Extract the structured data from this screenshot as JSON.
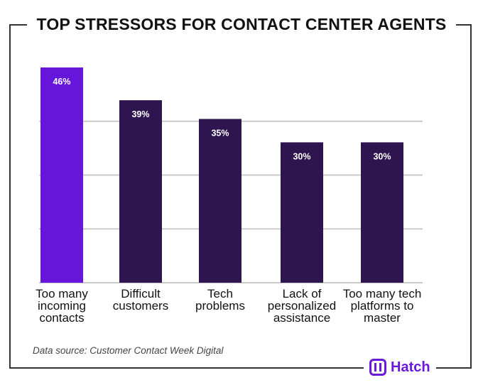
{
  "chart_data": {
    "type": "bar",
    "title": "TOP STRESSORS FOR CONTACT CENTER AGENTS",
    "categories": [
      "Too many incoming contacts",
      "Difficult customers",
      "Tech problems",
      "Lack of personalized assistance",
      "Too many tech platforms to master"
    ],
    "category_lines": [
      [
        "Too many",
        "incoming",
        "contacts"
      ],
      [
        "Difficult",
        "customers"
      ],
      [
        "Tech",
        "problems"
      ],
      [
        "Lack of",
        "personalized",
        "assistance"
      ],
      [
        "Too many tech",
        "platforms to",
        "master"
      ]
    ],
    "values": [
      46,
      39,
      35,
      30,
      30
    ],
    "data_labels": [
      "46%",
      "39%",
      "35%",
      "30%",
      "30%"
    ],
    "ylim": [
      0,
      46
    ],
    "grid": true,
    "highlight_color": "#6616da",
    "bar_color": "#2e1550",
    "grid_color": "#cccccc"
  },
  "source": "Data source: Customer Contact Week Digital",
  "brand": {
    "name": "Hatch",
    "color": "#6a1ad8",
    "icon": "hatch-logo-icon"
  }
}
